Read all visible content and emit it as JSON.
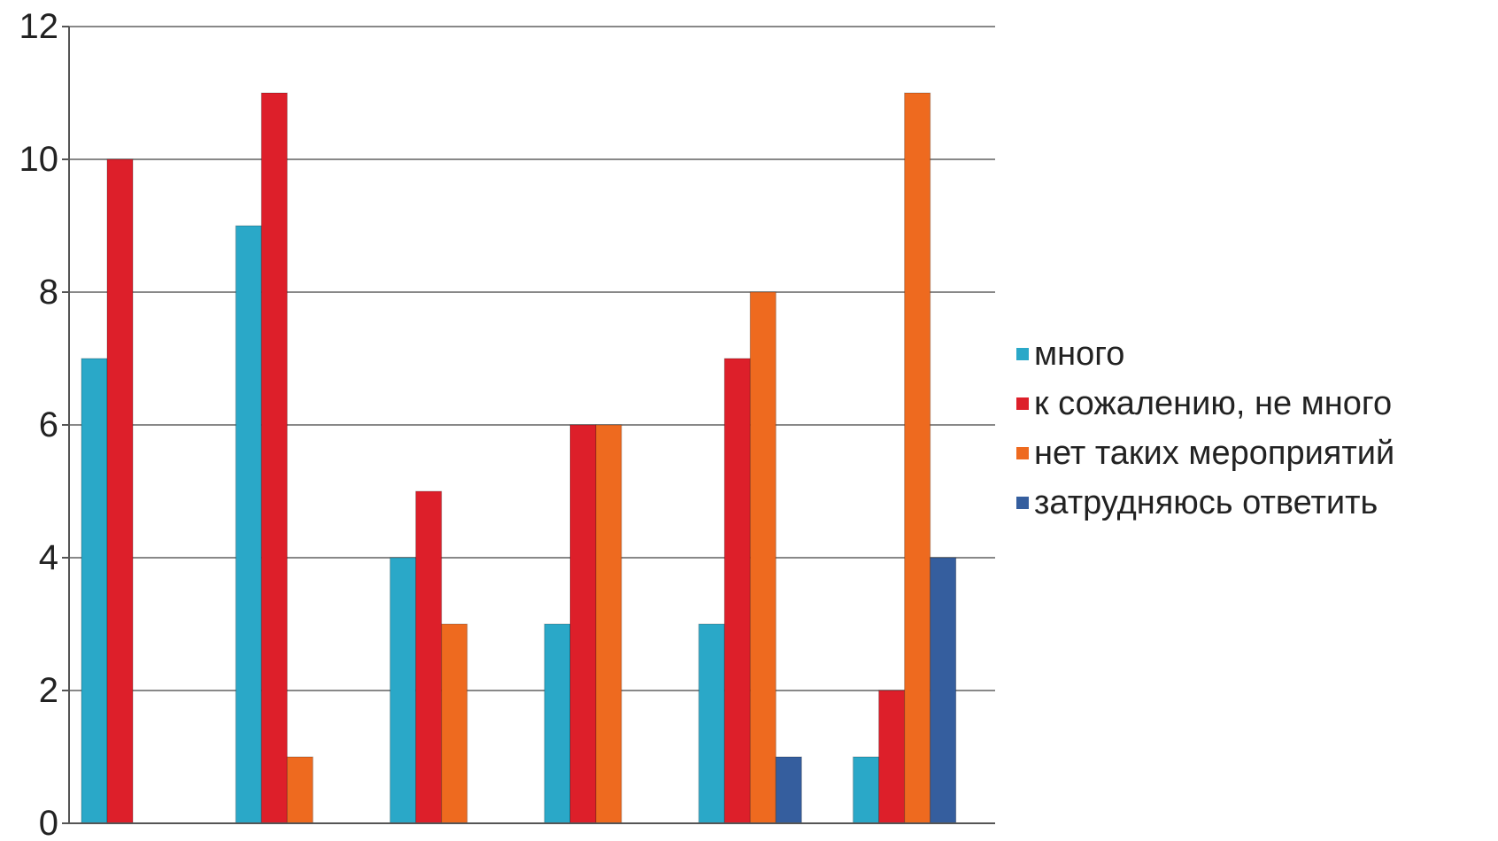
{
  "chart_data": {
    "type": "bar",
    "categories": [
      "",
      "",
      "",
      "",
      "",
      ""
    ],
    "series": [
      {
        "name": "много",
        "color": "#2AA8C8",
        "values": [
          7,
          9,
          4,
          3,
          3,
          1
        ]
      },
      {
        "name": "к сожалению, не много",
        "color": "#DD1F2A",
        "values": [
          10,
          11,
          5,
          6,
          7,
          2
        ]
      },
      {
        "name": "нет таких мероприятий",
        "color": "#EE6A1F",
        "values": [
          0,
          1,
          3,
          6,
          8,
          11
        ]
      },
      {
        "name": "затрудняюсь ответить",
        "color": "#355E9E",
        "values": [
          0,
          0,
          0,
          0,
          1,
          4
        ]
      }
    ],
    "ylim": [
      0,
      12
    ],
    "yticks": [
      0,
      2,
      4,
      6,
      8,
      10,
      12
    ],
    "grid": true,
    "legend_position": "right",
    "title": "",
    "xlabel": "",
    "ylabel": ""
  }
}
